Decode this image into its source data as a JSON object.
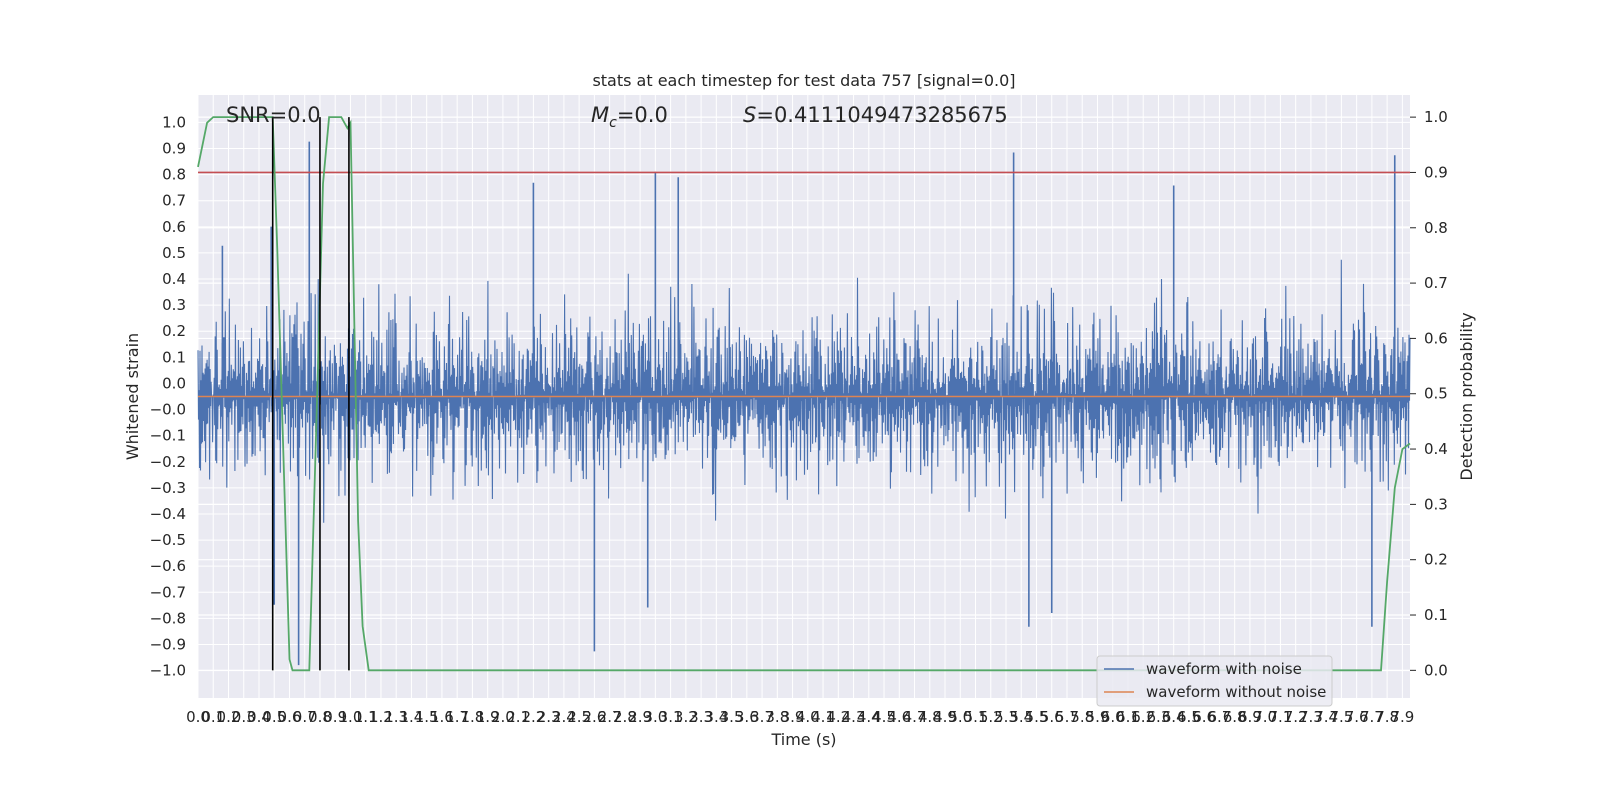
{
  "chart_data": {
    "type": "line",
    "title": "stats at each timestep for test data 757 [signal=0.0]",
    "xlabel": "Time (s)",
    "ylabel": "Whitened strain",
    "y2label": "Detection probability",
    "xlim": [
      0.0,
      7.95
    ],
    "ylim": [
      -1.1,
      1.1
    ],
    "y2lim": [
      -0.05,
      1.04
    ],
    "grid": true,
    "legend_position": "lower-right",
    "colors": {
      "waveform_with_noise": "#4c72b0",
      "waveform_without_noise": "#dd8452",
      "detection_probability": "#55a868",
      "threshold": "#c44e52",
      "markers": "#000000",
      "background": "#eaeaf2",
      "grid": "#ffffff"
    },
    "x_ticks": [
      "0.0",
      "0.1",
      "0.2",
      "0.3",
      "0.4",
      "0.5",
      "0.6",
      "0.7",
      "0.8",
      "0.9",
      "1.0",
      "1.1",
      "1.2",
      "1.3",
      "1.4",
      "1.5",
      "1.6",
      "1.7",
      "1.8",
      "1.9",
      "2.0",
      "2.1",
      "2.2",
      "2.3",
      "2.4",
      "2.5",
      "2.6",
      "2.7",
      "2.8",
      "2.9",
      "3.0",
      "3.1",
      "3.2",
      "3.3",
      "3.4",
      "3.5",
      "3.6",
      "3.7",
      "3.8",
      "3.9",
      "4.0",
      "4.1",
      "4.2",
      "4.3",
      "4.4",
      "4.5",
      "4.6",
      "4.7",
      "4.8",
      "4.9",
      "5.0",
      "5.1",
      "5.2",
      "5.3",
      "5.4",
      "5.5",
      "5.6",
      "5.7",
      "5.8",
      "5.9",
      "6.0",
      "6.1",
      "6.2",
      "6.3",
      "6.4",
      "6.5",
      "6.6",
      "6.7",
      "6.8",
      "6.9",
      "7.0",
      "7.1",
      "7.2",
      "7.3",
      "7.4",
      "7.5",
      "7.6",
      "7.7",
      "7.8",
      "7.9"
    ],
    "y_ticks": [
      "1.0",
      "0.9",
      "0.8",
      "0.7",
      "0.6",
      "0.5",
      "0.4",
      "0.3",
      "0.2",
      "0.1",
      "0.0",
      "−0.0",
      "−0.1",
      "−0.2",
      "−0.3",
      "−0.4",
      "−0.5",
      "−0.6",
      "−0.7",
      "−0.8",
      "−0.9",
      "−1.0"
    ],
    "y2_ticks": [
      "0.0",
      "0.1",
      "0.2",
      "0.3",
      "0.4",
      "0.5",
      "0.6",
      "0.7",
      "0.8",
      "0.9",
      "1.0"
    ],
    "annotations": {
      "snr": "SNR=0.0",
      "mc_symbol": "M",
      "mc_subscript": "c",
      "mc_value": "=0.0",
      "s_symbol": "S",
      "s_value": "=0.4111049473285675"
    },
    "series": [
      {
        "name": "waveform with noise",
        "envelope": "dense random noise, roughly ±0.5 with spikes",
        "peaks_upper": [
          [
            0.16,
            0.55
          ],
          [
            0.48,
            0.62
          ],
          [
            0.73,
            0.93
          ],
          [
            2.2,
            0.78
          ],
          [
            3.0,
            0.82
          ],
          [
            3.15,
            0.8
          ],
          [
            5.35,
            0.89
          ],
          [
            6.4,
            0.77
          ],
          [
            7.85,
            0.88
          ]
        ],
        "peaks_lower": [
          [
            0.5,
            -0.76
          ],
          [
            0.66,
            -0.98
          ],
          [
            2.6,
            -0.93
          ],
          [
            2.95,
            -0.77
          ],
          [
            5.45,
            -0.84
          ],
          [
            5.6,
            -0.79
          ],
          [
            7.7,
            -0.84
          ]
        ]
      },
      {
        "name": "waveform without noise",
        "x": [
          0.0,
          7.95
        ],
        "y": [
          0.0,
          0.0
        ]
      },
      {
        "axis": "right",
        "x": [
          0.0,
          0.06,
          0.1,
          0.18,
          0.3,
          0.4,
          0.49,
          0.52,
          0.6,
          0.62,
          0.7,
          0.73,
          0.78,
          0.82,
          0.86,
          0.9,
          0.94,
          0.98,
          1.0,
          1.05,
          1.08,
          1.12,
          7.0,
          7.68,
          7.72,
          7.76,
          7.8,
          7.85,
          7.9,
          7.95
        ],
        "y": [
          0.91,
          0.99,
          1.0,
          1.0,
          1.0,
          1.0,
          1.0,
          0.76,
          0.02,
          0.0,
          0.0,
          0.0,
          0.48,
          0.88,
          1.0,
          1.0,
          1.0,
          0.98,
          0.99,
          0.27,
          0.08,
          0.0,
          0.0,
          0.0,
          0.0,
          0.0,
          0.16,
          0.33,
          0.4,
          0.41
        ]
      },
      {
        "name": "threshold",
        "axis": "right",
        "x": [
          0.0,
          7.95
        ],
        "y": [
          0.9,
          0.9
        ]
      }
    ],
    "vertical_markers": [
      0.49,
      0.8,
      0.99
    ],
    "legend": [
      "waveform with noise",
      "waveform without noise"
    ]
  }
}
